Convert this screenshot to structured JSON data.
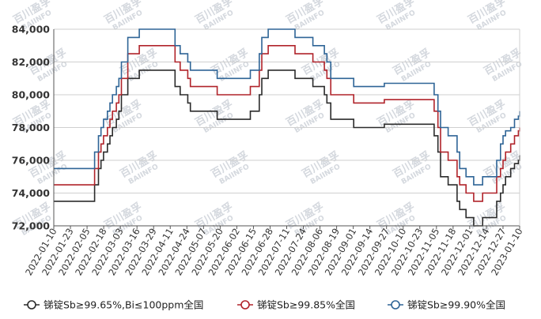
{
  "chart_data": {
    "type": "line",
    "title": "",
    "xlabel": "",
    "ylabel": "",
    "ylim": [
      72000,
      84000
    ],
    "yticks": [
      72000,
      74000,
      76000,
      78000,
      80000,
      82000,
      84000
    ],
    "ytick_labels": [
      "72,000",
      "74,000",
      "76,000",
      "78,000",
      "80,000",
      "82,000",
      "84,000"
    ],
    "xtick_labels": [
      "2022-01-10",
      "2022-01-23",
      "2022-02-05",
      "2022-02-18",
      "2022-03-03",
      "2022-03-16",
      "2022-03-29",
      "2022-04-11",
      "2022-04-24",
      "2022-05-07",
      "2022-05-20",
      "2022-06-02",
      "2022-06-15",
      "2022-06-28",
      "2022-07-11",
      "2022-07-24",
      "2022-08-06",
      "2022-08-19",
      "2022-09-01",
      "2022-09-14",
      "2022-09-27",
      "2022-10-10",
      "2022-10-23",
      "2022-11-05",
      "2022-11-18",
      "2022-12-01",
      "2022-12-14",
      "2022-12-27",
      "2023-01-10"
    ],
    "x_range": [
      "2022-01-10",
      "2023-01-10"
    ],
    "grid": "horizontal",
    "legend_position": "bottom",
    "watermark": {
      "cn": "百川盈孚",
      "en": "BAIINFO"
    },
    "series": [
      {
        "name": "锑锭Sb≥99.65%,Bi≤100ppm全国",
        "color": "#2b2b2b",
        "points": [
          [
            "2022-01-10",
            73500
          ],
          [
            "2022-02-10",
            73500
          ],
          [
            "2022-02-11",
            74500
          ],
          [
            "2022-02-14",
            75500
          ],
          [
            "2022-02-16",
            76000
          ],
          [
            "2022-02-18",
            76500
          ],
          [
            "2022-02-21",
            77000
          ],
          [
            "2022-02-23",
            77500
          ],
          [
            "2022-02-25",
            78000
          ],
          [
            "2022-02-28",
            78500
          ],
          [
            "2022-03-02",
            79000
          ],
          [
            "2022-03-04",
            80000
          ],
          [
            "2022-03-09",
            81000
          ],
          [
            "2022-03-18",
            81500
          ],
          [
            "2022-04-14",
            81500
          ],
          [
            "2022-04-15",
            80500
          ],
          [
            "2022-04-19",
            80000
          ],
          [
            "2022-04-25",
            79500
          ],
          [
            "2022-04-27",
            79000
          ],
          [
            "2022-05-17",
            79000
          ],
          [
            "2022-05-18",
            78500
          ],
          [
            "2022-06-10",
            78500
          ],
          [
            "2022-06-13",
            79000
          ],
          [
            "2022-06-20",
            80000
          ],
          [
            "2022-06-22",
            81000
          ],
          [
            "2022-06-27",
            81500
          ],
          [
            "2022-07-15",
            81500
          ],
          [
            "2022-07-18",
            81000
          ],
          [
            "2022-07-29",
            81000
          ],
          [
            "2022-08-01",
            80500
          ],
          [
            "2022-08-08",
            80500
          ],
          [
            "2022-08-10",
            80000
          ],
          [
            "2022-08-12",
            79500
          ],
          [
            "2022-08-15",
            78500
          ],
          [
            "2022-09-01",
            78500
          ],
          [
            "2022-09-02",
            78000
          ],
          [
            "2022-09-23",
            78000
          ],
          [
            "2022-09-26",
            78200
          ],
          [
            "2022-11-02",
            78200
          ],
          [
            "2022-11-04",
            77500
          ],
          [
            "2022-11-07",
            76500
          ],
          [
            "2022-11-09",
            75000
          ],
          [
            "2022-11-15",
            74500
          ],
          [
            "2022-11-22",
            73500
          ],
          [
            "2022-11-24",
            73000
          ],
          [
            "2022-11-29",
            72500
          ],
          [
            "2022-12-05",
            72000
          ],
          [
            "2022-12-09",
            72000
          ],
          [
            "2022-12-12",
            72500
          ],
          [
            "2022-12-22",
            72500
          ],
          [
            "2022-12-23",
            73500
          ],
          [
            "2022-12-26",
            74000
          ],
          [
            "2022-12-28",
            74500
          ],
          [
            "2022-12-30",
            75000
          ],
          [
            "2023-01-03",
            75500
          ],
          [
            "2023-01-06",
            75800
          ],
          [
            "2023-01-09",
            76000
          ],
          [
            "2023-01-10",
            76300
          ]
        ]
      },
      {
        "name": "锑锭Sb≥99.85%全国",
        "color": "#b0232a",
        "points": [
          [
            "2022-01-10",
            74500
          ],
          [
            "2022-02-10",
            74500
          ],
          [
            "2022-02-11",
            75500
          ],
          [
            "2022-02-14",
            76500
          ],
          [
            "2022-02-16",
            77000
          ],
          [
            "2022-02-18",
            77500
          ],
          [
            "2022-02-21",
            78000
          ],
          [
            "2022-02-23",
            78500
          ],
          [
            "2022-02-25",
            79000
          ],
          [
            "2022-02-28",
            79500
          ],
          [
            "2022-03-02",
            80000
          ],
          [
            "2022-03-04",
            81000
          ],
          [
            "2022-03-09",
            82500
          ],
          [
            "2022-03-18",
            83000
          ],
          [
            "2022-04-14",
            83000
          ],
          [
            "2022-04-15",
            82000
          ],
          [
            "2022-04-19",
            81500
          ],
          [
            "2022-04-25",
            81000
          ],
          [
            "2022-04-27",
            80500
          ],
          [
            "2022-05-17",
            80500
          ],
          [
            "2022-05-18",
            80000
          ],
          [
            "2022-06-10",
            80000
          ],
          [
            "2022-06-13",
            80500
          ],
          [
            "2022-06-20",
            81500
          ],
          [
            "2022-06-22",
            82500
          ],
          [
            "2022-06-27",
            83000
          ],
          [
            "2022-07-15",
            83000
          ],
          [
            "2022-07-18",
            82500
          ],
          [
            "2022-07-29",
            82500
          ],
          [
            "2022-08-01",
            82000
          ],
          [
            "2022-08-08",
            82000
          ],
          [
            "2022-08-10",
            81500
          ],
          [
            "2022-08-12",
            81000
          ],
          [
            "2022-08-15",
            80000
          ],
          [
            "2022-09-01",
            80000
          ],
          [
            "2022-09-02",
            79500
          ],
          [
            "2022-09-23",
            79500
          ],
          [
            "2022-09-26",
            79700
          ],
          [
            "2022-11-02",
            79700
          ],
          [
            "2022-11-04",
            79000
          ],
          [
            "2022-11-07",
            78000
          ],
          [
            "2022-11-09",
            76500
          ],
          [
            "2022-11-15",
            76000
          ],
          [
            "2022-11-22",
            75000
          ],
          [
            "2022-11-24",
            74500
          ],
          [
            "2022-11-29",
            74000
          ],
          [
            "2022-12-05",
            73500
          ],
          [
            "2022-12-09",
            73500
          ],
          [
            "2022-12-12",
            74000
          ],
          [
            "2022-12-22",
            74000
          ],
          [
            "2022-12-23",
            75000
          ],
          [
            "2022-12-26",
            75500
          ],
          [
            "2022-12-28",
            76000
          ],
          [
            "2022-12-30",
            76500
          ],
          [
            "2023-01-03",
            77000
          ],
          [
            "2023-01-06",
            77500
          ],
          [
            "2023-01-09",
            77800
          ],
          [
            "2023-01-10",
            78000
          ]
        ]
      },
      {
        "name": "锑锭Sb≥99.90%全国",
        "color": "#2e6496",
        "points": [
          [
            "2022-01-10",
            75500
          ],
          [
            "2022-02-10",
            75500
          ],
          [
            "2022-02-11",
            76500
          ],
          [
            "2022-02-14",
            77500
          ],
          [
            "2022-02-16",
            78000
          ],
          [
            "2022-02-18",
            78500
          ],
          [
            "2022-02-21",
            79000
          ],
          [
            "2022-02-23",
            79500
          ],
          [
            "2022-02-25",
            80000
          ],
          [
            "2022-02-28",
            80500
          ],
          [
            "2022-03-02",
            81000
          ],
          [
            "2022-03-04",
            82000
          ],
          [
            "2022-03-09",
            83500
          ],
          [
            "2022-03-18",
            84000
          ],
          [
            "2022-04-14",
            84000
          ],
          [
            "2022-04-15",
            83000
          ],
          [
            "2022-04-19",
            82500
          ],
          [
            "2022-04-25",
            82000
          ],
          [
            "2022-04-27",
            81500
          ],
          [
            "2022-05-17",
            81500
          ],
          [
            "2022-05-18",
            81000
          ],
          [
            "2022-06-10",
            81000
          ],
          [
            "2022-06-13",
            81500
          ],
          [
            "2022-06-20",
            82500
          ],
          [
            "2022-06-22",
            83500
          ],
          [
            "2022-06-27",
            84000
          ],
          [
            "2022-07-15",
            84000
          ],
          [
            "2022-07-18",
            83500
          ],
          [
            "2022-07-29",
            83500
          ],
          [
            "2022-08-01",
            83000
          ],
          [
            "2022-08-08",
            83000
          ],
          [
            "2022-08-10",
            82500
          ],
          [
            "2022-08-12",
            82000
          ],
          [
            "2022-08-15",
            81000
          ],
          [
            "2022-09-01",
            81000
          ],
          [
            "2022-09-02",
            80500
          ],
          [
            "2022-09-23",
            80500
          ],
          [
            "2022-09-26",
            80700
          ],
          [
            "2022-11-02",
            80700
          ],
          [
            "2022-11-04",
            80000
          ],
          [
            "2022-11-07",
            79000
          ],
          [
            "2022-11-09",
            78000
          ],
          [
            "2022-11-15",
            77500
          ],
          [
            "2022-11-22",
            76500
          ],
          [
            "2022-11-24",
            75500
          ],
          [
            "2022-11-29",
            75000
          ],
          [
            "2022-12-05",
            74500
          ],
          [
            "2022-12-09",
            74500
          ],
          [
            "2022-12-12",
            75000
          ],
          [
            "2022-12-22",
            75000
          ],
          [
            "2022-12-23",
            76000
          ],
          [
            "2022-12-26",
            77000
          ],
          [
            "2022-12-28",
            77500
          ],
          [
            "2022-12-30",
            77800
          ],
          [
            "2023-01-03",
            78000
          ],
          [
            "2023-01-06",
            78500
          ],
          [
            "2023-01-09",
            78700
          ],
          [
            "2023-01-10",
            79000
          ]
        ]
      }
    ]
  }
}
